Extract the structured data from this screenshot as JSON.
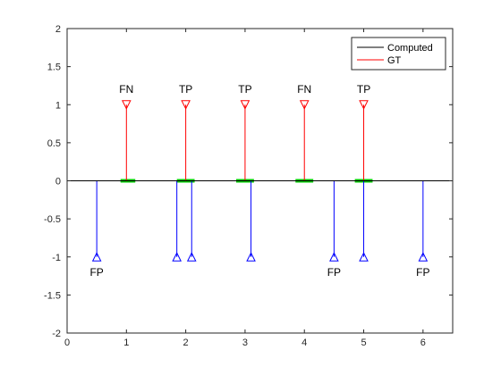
{
  "chart_data": {
    "type": "stem",
    "title": "",
    "xlabel": "",
    "ylabel": "",
    "xlim": [
      0,
      6.5
    ],
    "ylim": [
      -2,
      2
    ],
    "xticks": [
      0,
      1,
      2,
      3,
      4,
      5,
      6
    ],
    "yticks": [
      -2,
      -1.5,
      -1,
      -0.5,
      0,
      0.5,
      1,
      1.5,
      2
    ],
    "grid": false,
    "legend_position": "top-right",
    "baseline": {
      "y": 0,
      "color": "#000000"
    },
    "series": [
      {
        "name": "Computed",
        "color": "#0000ff",
        "marker": "triangle-up",
        "points": [
          {
            "x": 0.5,
            "y": -1
          },
          {
            "x": 1.85,
            "y": -1
          },
          {
            "x": 2.1,
            "y": -1
          },
          {
            "x": 3.1,
            "y": -1
          },
          {
            "x": 4.5,
            "y": -1
          },
          {
            "x": 5.0,
            "y": -1
          },
          {
            "x": 6.0,
            "y": -1
          }
        ]
      },
      {
        "name": "GT",
        "color": "#ff0000",
        "marker": "triangle-down",
        "points": [
          {
            "x": 1.0,
            "y": 1
          },
          {
            "x": 2.0,
            "y": 1
          },
          {
            "x": 3.0,
            "y": 1
          },
          {
            "x": 4.0,
            "y": 1
          },
          {
            "x": 5.0,
            "y": 1
          }
        ]
      }
    ],
    "tolerance_windows": {
      "color": "#00cc00",
      "ranges": [
        [
          0.9,
          1.15
        ],
        [
          1.85,
          2.15
        ],
        [
          2.85,
          3.15
        ],
        [
          3.85,
          4.15
        ],
        [
          4.85,
          5.15
        ]
      ]
    },
    "annotations": [
      {
        "text": "FN",
        "x": 1.0,
        "y": 1.2
      },
      {
        "text": "TP",
        "x": 2.0,
        "y": 1.2
      },
      {
        "text": "TP",
        "x": 3.0,
        "y": 1.2
      },
      {
        "text": "FN",
        "x": 4.0,
        "y": 1.2
      },
      {
        "text": "TP",
        "x": 5.0,
        "y": 1.2
      },
      {
        "text": "FP",
        "x": 0.5,
        "y": -1.2
      },
      {
        "text": "FP",
        "x": 4.5,
        "y": -1.2
      },
      {
        "text": "FP",
        "x": 6.0,
        "y": -1.2
      }
    ]
  }
}
